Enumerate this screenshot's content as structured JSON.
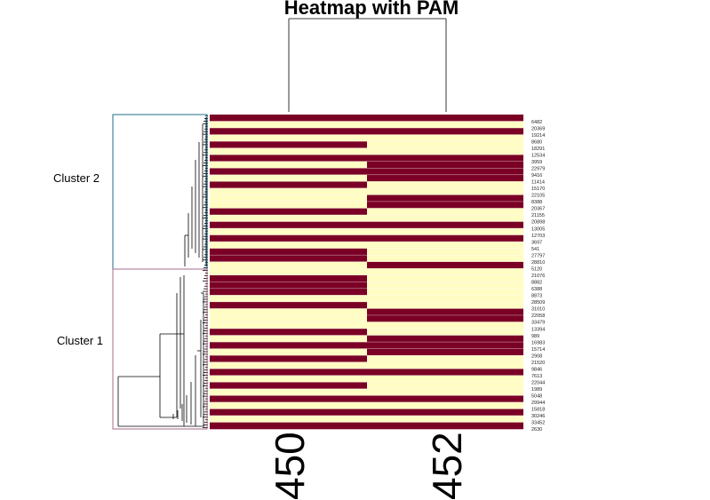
{
  "chart_data": {
    "type": "heatmap",
    "title": "Heatmap with PAM",
    "columns": [
      "450",
      "452"
    ],
    "clusters": [
      {
        "name": "Cluster 2",
        "color": "#1f6f8b"
      },
      {
        "name": "Cluster 1",
        "color": "#a56b8c"
      }
    ],
    "row_labels": [
      "6482",
      "20369",
      "19214",
      "8680",
      "18291",
      "12534",
      "3959",
      "22979",
      "9416",
      "11414",
      "15170",
      "22105",
      "8388",
      "20367",
      "21155",
      "20898",
      "13005",
      "12703",
      "3697",
      "541",
      "27797",
      "28810",
      "5120",
      "21076",
      "8882",
      "6388",
      "8873",
      "28509",
      "31010",
      "22058",
      "33479",
      "13394",
      "989",
      "16983",
      "15714",
      "2908",
      "21520",
      "9846",
      "7613",
      "22044",
      "1989",
      "5048",
      "29944",
      "15818",
      "30246",
      "33452",
      "2630"
    ],
    "cells": [
      [
        1,
        1
      ],
      [
        0,
        0
      ],
      [
        1,
        1
      ],
      [
        0,
        0
      ],
      [
        1,
        0
      ],
      [
        0,
        0
      ],
      [
        1,
        1
      ],
      [
        0,
        1
      ],
      [
        1,
        1
      ],
      [
        0,
        1
      ],
      [
        1,
        0
      ],
      [
        0,
        0
      ],
      [
        0,
        1
      ],
      [
        0,
        1
      ],
      [
        1,
        0
      ],
      [
        0,
        0
      ],
      [
        1,
        1
      ],
      [
        0,
        0
      ],
      [
        1,
        1
      ],
      [
        0,
        0
      ],
      [
        1,
        0
      ],
      [
        1,
        0
      ],
      [
        0,
        1
      ],
      [
        0,
        0
      ],
      [
        1,
        0
      ],
      [
        1,
        0
      ],
      [
        1,
        0
      ],
      [
        0,
        0
      ],
      [
        1,
        0
      ],
      [
        0,
        1
      ],
      [
        0,
        1
      ],
      [
        0,
        0
      ],
      [
        1,
        0
      ],
      [
        0,
        1
      ],
      [
        1,
        1
      ],
      [
        0,
        1
      ],
      [
        1,
        0
      ],
      [
        0,
        0
      ],
      [
        1,
        1
      ],
      [
        0,
        0
      ],
      [
        1,
        0
      ],
      [
        0,
        0
      ],
      [
        1,
        1
      ],
      [
        0,
        0
      ],
      [
        1,
        1
      ],
      [
        0,
        0
      ],
      [
        1,
        1
      ]
    ],
    "colors": {
      "high": "#7a0025",
      "low": "#fffcc4"
    },
    "legend": "none"
  }
}
